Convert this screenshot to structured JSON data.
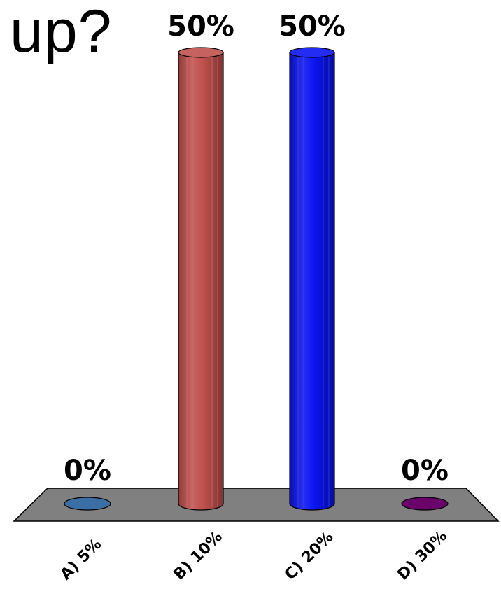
{
  "title": "up?",
  "chart_data": {
    "type": "bar",
    "style": "3d-cylinder",
    "categories": [
      "A) 5%",
      "B) 10%",
      "C) 20%",
      "D) 30%"
    ],
    "values": [
      0,
      50,
      50,
      0
    ],
    "value_labels": [
      "0%",
      "50%",
      "50%",
      "0%"
    ],
    "ylim": [
      0,
      50
    ],
    "colors": [
      "#3b6ea5",
      "#c0504d",
      "#0a14f0",
      "#6a006a"
    ],
    "floor_color": "#808080",
    "grid": false,
    "legend": "none"
  }
}
